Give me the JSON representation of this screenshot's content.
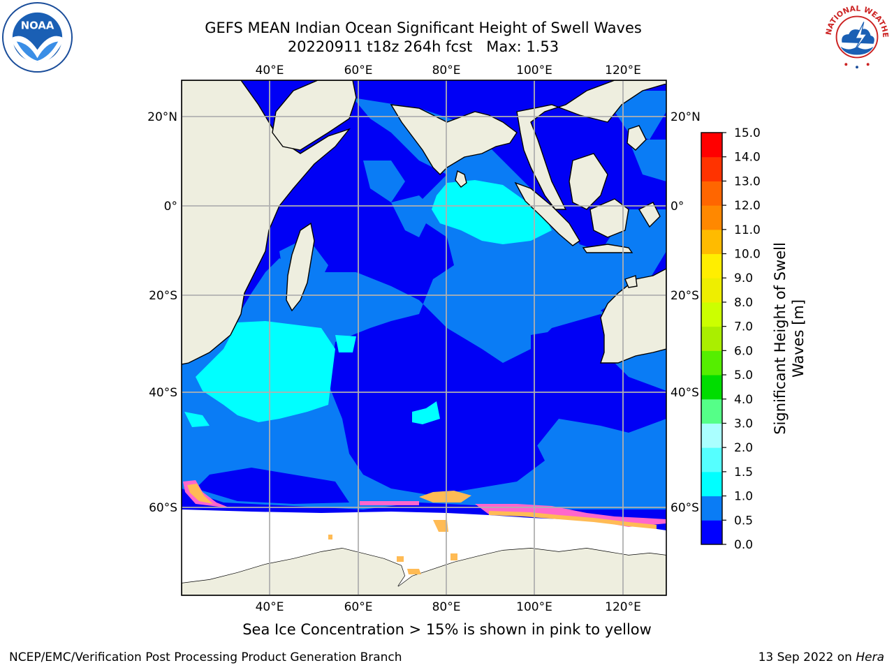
{
  "title": {
    "line1": "GEFS MEAN Indian Ocean Significant Height of Swell Waves",
    "line2": "20220911 t18z 264h fcst   Max: 1.53"
  },
  "map": {
    "lon_labels": [
      "40°E",
      "60°E",
      "80°E",
      "100°E",
      "120°E"
    ],
    "lat_labels_left": [
      "20°N",
      "0°",
      "20°S",
      "40°S",
      "60°S"
    ],
    "lat_labels_right": [
      "20°N",
      "0°",
      "20°S",
      "40°S",
      "60°S"
    ],
    "colors": {
      "land": "#eeeedf",
      "ice_free_ocean_0_0.5": "#0000f5",
      "band_0.5_1.0": "#0a7cf5",
      "band_1.0_1.5": "#00ffff",
      "sea_ice": "#ffffff",
      "gridline": "#b0b0b0"
    }
  },
  "colorbar": {
    "title_line1": "Significant Height of Swell",
    "title_line2": "Waves [m]",
    "ticks": [
      "0.0",
      "0.5",
      "1.0",
      "1.5",
      "2.0",
      "3.0",
      "4.0",
      "5.0",
      "6.0",
      "7.0",
      "8.0",
      "9.0",
      "10.0",
      "11.0",
      "12.0",
      "13.0",
      "14.0",
      "15.0"
    ],
    "colors": [
      "#0000ff",
      "#0a7cf5",
      "#00ffff",
      "#55ffff",
      "#aaffff",
      "#55ff88",
      "#00dd00",
      "#55ee00",
      "#aaee00",
      "#ccff00",
      "#eeee00",
      "#ffee00",
      "#ffbb00",
      "#ff8800",
      "#ff6600",
      "#ff3300",
      "#ff0000"
    ]
  },
  "ice_note": "Sea Ice Concentration > 15% is shown in pink to yellow",
  "footer": {
    "left": "NCEP/EMC/Verification Post Processing Product Generation Branch",
    "right_date": "13 Sep 2022 on ",
    "right_machine": "Hera"
  }
}
